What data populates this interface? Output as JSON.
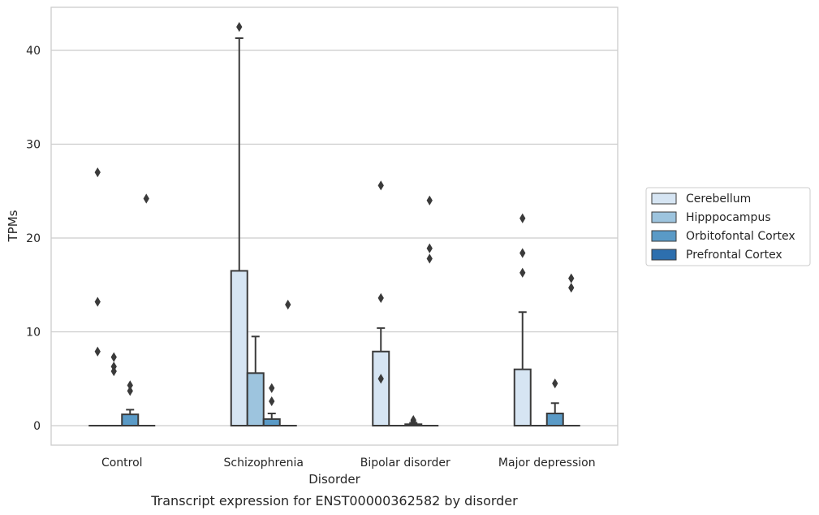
{
  "chart_data": {
    "type": "box",
    "title": "",
    "caption": "Transcript expression for ENST00000362582 by disorder",
    "xlabel": "Disorder",
    "ylabel": "TPMs",
    "ylim": [
      -2,
      44.5
    ],
    "yticks": [
      0,
      10,
      20,
      30,
      40
    ],
    "grid": true,
    "legend_position": "right",
    "categories": [
      "Control",
      "Schizophrenia",
      "Bipolar disorder",
      "Major depression"
    ],
    "series": [
      {
        "name": "Cerebellum",
        "color": "#d6e5f3",
        "boxes": [
          {
            "q1": 0,
            "median": 0,
            "q3": 0,
            "whisker_low": 0,
            "whisker_high": 0,
            "outliers": [
              27.0,
              13.2,
              7.9
            ]
          },
          {
            "q1": 0,
            "median": 0,
            "q3": 16.5,
            "whisker_low": 0,
            "whisker_high": 41.3,
            "outliers": [
              42.5
            ]
          },
          {
            "q1": 0,
            "median": 0,
            "q3": 7.9,
            "whisker_low": 0,
            "whisker_high": 10.4,
            "outliers": [
              25.6,
              13.6,
              5.0
            ]
          },
          {
            "q1": 0,
            "median": 0,
            "q3": 6.0,
            "whisker_low": 0,
            "whisker_high": 12.1,
            "outliers": [
              22.1,
              18.4,
              16.3
            ]
          }
        ]
      },
      {
        "name": "Hipppocampus",
        "color": "#9dc4de",
        "boxes": [
          {
            "q1": 0,
            "median": 0,
            "q3": 0,
            "whisker_low": 0,
            "whisker_high": 0,
            "outliers": [
              7.3,
              6.3,
              5.8
            ]
          },
          {
            "q1": 0,
            "median": 0,
            "q3": 5.6,
            "whisker_low": 0,
            "whisker_high": 9.5,
            "outliers": []
          },
          {
            "q1": 0,
            "median": 0,
            "q3": 0,
            "whisker_low": 0,
            "whisker_high": 0,
            "outliers": []
          },
          {
            "q1": 0,
            "median": 0,
            "q3": 0,
            "whisker_low": 0,
            "whisker_high": 0,
            "outliers": []
          }
        ]
      },
      {
        "name": "Orbitofontal Cortex",
        "color": "#5a9ac6",
        "boxes": [
          {
            "q1": 0,
            "median": 0,
            "q3": 1.2,
            "whisker_low": 0,
            "whisker_high": 1.7,
            "outliers": [
              4.3,
              3.7
            ]
          },
          {
            "q1": 0,
            "median": 0,
            "q3": 0.7,
            "whisker_low": 0,
            "whisker_high": 1.3,
            "outliers": [
              4.0,
              2.6
            ]
          },
          {
            "q1": 0,
            "median": 0,
            "q3": 0.15,
            "whisker_low": 0,
            "whisker_high": 0.3,
            "outliers": [
              0.6,
              0.5
            ]
          },
          {
            "q1": 0,
            "median": 0,
            "q3": 1.3,
            "whisker_low": 0,
            "whisker_high": 2.4,
            "outliers": [
              4.5
            ]
          }
        ]
      },
      {
        "name": "Prefrontal Cortex",
        "color": "#2d6fae",
        "boxes": [
          {
            "q1": 0,
            "median": 0,
            "q3": 0,
            "whisker_low": 0,
            "whisker_high": 0,
            "outliers": [
              24.2
            ]
          },
          {
            "q1": 0,
            "median": 0,
            "q3": 0,
            "whisker_low": 0,
            "whisker_high": 0,
            "outliers": [
              12.9
            ]
          },
          {
            "q1": 0,
            "median": 0,
            "q3": 0,
            "whisker_low": 0,
            "whisker_high": 0,
            "outliers": [
              24.0,
              18.9,
              17.8
            ]
          },
          {
            "q1": 0,
            "median": 0,
            "q3": 0,
            "whisker_low": 0,
            "whisker_high": 0,
            "outliers": [
              15.7,
              14.7
            ]
          }
        ]
      }
    ]
  }
}
